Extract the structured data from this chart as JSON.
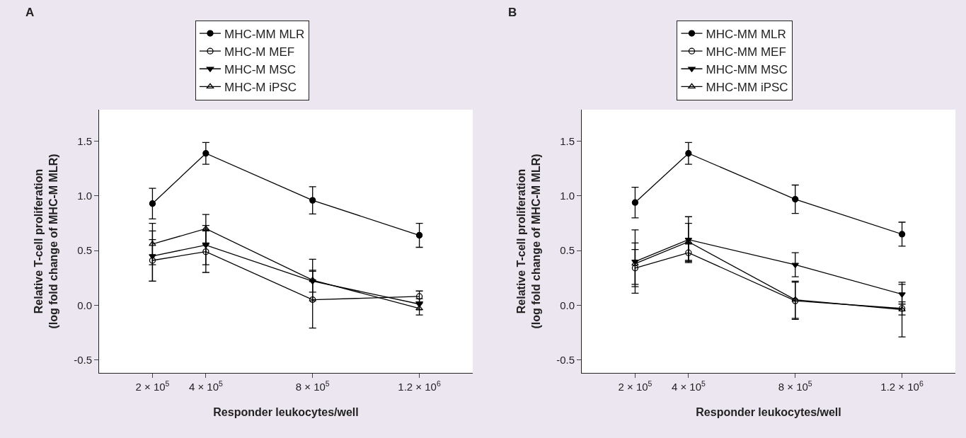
{
  "chart_data": [
    {
      "type": "line",
      "title": "A",
      "xlabel": "Responder leukocytes/well",
      "ylabel": "Relative T-cell proliferation\n(log fold change of MHC-M MLR)",
      "x": [
        200000,
        400000,
        800000,
        1200000
      ],
      "xlim": [
        0,
        1400000
      ],
      "xticks": [
        {
          "value": 200000,
          "label": "2 × 10$^{5}$"
        },
        {
          "value": 400000,
          "label": "4 × 10$^{5}$"
        },
        {
          "value": 800000,
          "label": "8 × 10$^{5}$"
        },
        {
          "value": 1200000,
          "label": "1.2 × 10$^{6}$"
        }
      ],
      "ylim": [
        -0.62,
        1.79
      ],
      "yticks": [
        {
          "value": -0.5,
          "label": "-0.5"
        },
        {
          "value": 0,
          "label": "0.0"
        },
        {
          "value": 0.5,
          "label": "0.5"
        },
        {
          "value": 1,
          "label": "1.0"
        },
        {
          "value": 1.5,
          "label": "1.5"
        }
      ],
      "grid": false,
      "legend": "top",
      "series": [
        {
          "name": "MHC-MM MLR",
          "color": "#000000",
          "marker": "circle",
          "values": [
            0.93,
            1.39,
            0.96,
            0.64
          ],
          "errors": [
            0.14,
            0.1,
            0.125,
            0.11
          ]
        },
        {
          "name": "MHC-M MEF",
          "color": "#000000",
          "marker": "circle-open",
          "values": [
            0.41,
            0.49,
            0.05,
            0.08
          ],
          "errors": [
            0.19,
            0.19,
            0.26,
            0.05
          ]
        },
        {
          "name": "MHC-M MSC",
          "color": "#000000",
          "marker": "triangle-down",
          "values": [
            0.45,
            0.55,
            0.22,
            0.01
          ],
          "errors": [
            0.23,
            0.18,
            0.1,
            0.05
          ]
        },
        {
          "name": "MHC-M iPSC",
          "color": "#000000",
          "marker": "triangle-up-open",
          "values": [
            0.56,
            0.7,
            0.23,
            -0.03
          ],
          "errors": [
            0.19,
            0.13,
            0.19,
            0.06
          ]
        }
      ]
    },
    {
      "type": "line",
      "title": "B",
      "xlabel": "Responder leukocytes/well",
      "ylabel": "Relative T-cell proliferation\n(log fold change of MHC-M MLR)",
      "x": [
        200000,
        400000,
        800000,
        1200000
      ],
      "xlim": [
        0,
        1400000
      ],
      "xticks": [
        {
          "value": 200000,
          "label": "2 × 10$^{5}$"
        },
        {
          "value": 400000,
          "label": "4 × 10$^{5}$"
        },
        {
          "value": 800000,
          "label": "8 × 10$^{5}$"
        },
        {
          "value": 1200000,
          "label": "1.2 × 10$^{6}$"
        }
      ],
      "ylim": [
        -0.62,
        1.79
      ],
      "yticks": [
        {
          "value": -0.5,
          "label": "-0.5"
        },
        {
          "value": 0,
          "label": "0.0"
        },
        {
          "value": 0.5,
          "label": "0.5"
        },
        {
          "value": 1,
          "label": "1.0"
        },
        {
          "value": 1.5,
          "label": "1.5"
        }
      ],
      "grid": false,
      "legend": "top",
      "series": [
        {
          "name": "MHC-MM MLR",
          "color": "#000000",
          "marker": "circle",
          "values": [
            0.94,
            1.39,
            0.97,
            0.65
          ],
          "errors": [
            0.14,
            0.1,
            0.13,
            0.11
          ]
        },
        {
          "name": "MHC-MM MEF",
          "color": "#000000",
          "marker": "circle-open",
          "values": [
            0.34,
            0.48,
            0.04,
            -0.03
          ],
          "errors": [
            0.17,
            0.08,
            0.17,
            0.06
          ]
        },
        {
          "name": "MHC-MM MSC",
          "color": "#000000",
          "marker": "triangle-down",
          "values": [
            0.4,
            0.6,
            0.37,
            0.1
          ],
          "errors": [
            0.29,
            0.21,
            0.11,
            0.09
          ]
        },
        {
          "name": "MHC-MM iPSC",
          "color": "#000000",
          "marker": "triangle-up-open",
          "values": [
            0.38,
            0.58,
            0.05,
            -0.04
          ],
          "errors": [
            0.19,
            0.17,
            0.17,
            0.25
          ]
        }
      ]
    }
  ]
}
